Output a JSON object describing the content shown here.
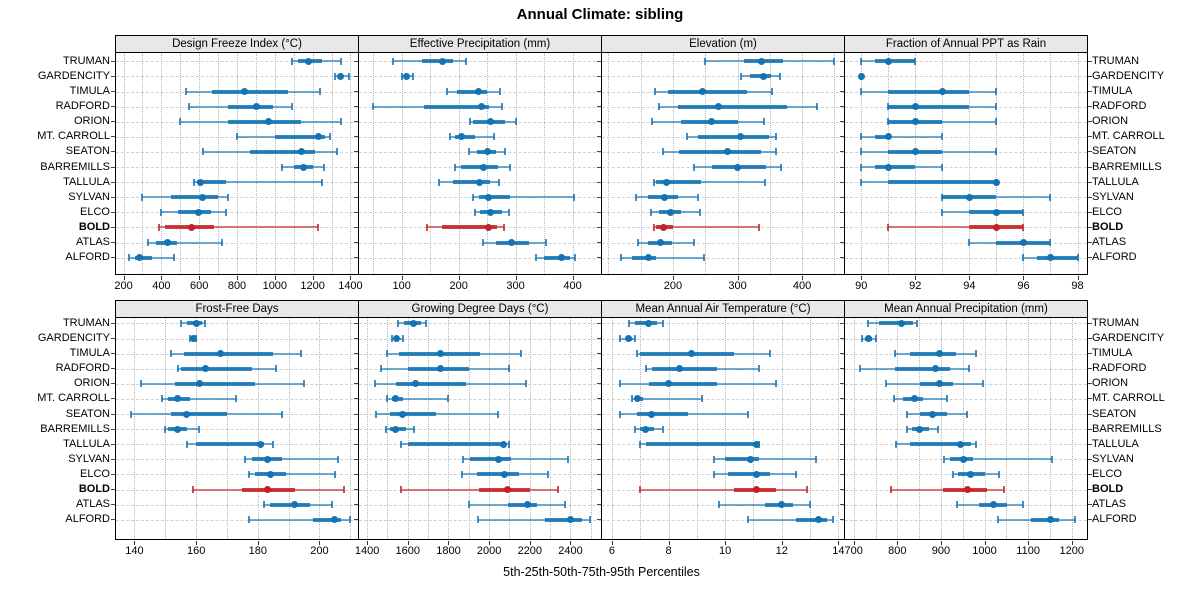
{
  "title": "Annual Climate: sibling",
  "footer": "5th-25th-50th-75th-95th Percentiles",
  "chart_data": {
    "type": "dot-interval",
    "title": "Annual Climate: sibling",
    "xlabel": "5th-25th-50th-75th-95th Percentiles",
    "percentiles": [
      5,
      25,
      50,
      75,
      95
    ],
    "legend_position": "none",
    "grid": "dotted",
    "stations": [
      "TRUMAN",
      "GARDENCITY",
      "TIMULA",
      "RADFORD",
      "ORION",
      "MT. CARROLL",
      "SEATON",
      "BARREMILLS",
      "TALLULA",
      "SYLVAN",
      "ELCO",
      "BOLD",
      "ATLAS",
      "ALFORD"
    ],
    "highlight_station": "BOLD",
    "colors": {
      "series": "#1473B4",
      "highlight": "#C22227",
      "strip_bg": "#E8E8E8",
      "panel_border": "#000000",
      "grid_line": "#B5B5B5",
      "row_guide": "#D2D2D2"
    },
    "panels": [
      {
        "key": "design-freeze-index",
        "title": "Design Freeze Index (°C)",
        "xmin": 160,
        "xmax": 1440,
        "ticks": [
          200,
          400,
          600,
          800,
          1000,
          1200,
          1400
        ],
        "grid_step": 100,
        "values": {
          "TRUMAN": [
            1090,
            1120,
            1180,
            1250,
            1350
          ],
          "GARDENCITY": [
            1320,
            1340,
            1350,
            1360,
            1390
          ],
          "TIMULA": [
            530,
            670,
            840,
            1070,
            1240
          ],
          "RADFORD": [
            545,
            750,
            905,
            990,
            1090
          ],
          "ORION": [
            500,
            750,
            965,
            1140,
            1350
          ],
          "MT. CARROLL": [
            800,
            1000,
            1230,
            1265,
            1290
          ],
          "SEATON": [
            620,
            870,
            1140,
            1210,
            1330
          ],
          "BARREMILLS": [
            1040,
            1100,
            1150,
            1200,
            1260
          ],
          "TALLULA": [
            575,
            590,
            605,
            740,
            1250
          ],
          "SYLVAN": [
            300,
            450,
            620,
            700,
            750
          ],
          "ELCO": [
            400,
            490,
            595,
            660,
            740
          ],
          "BOLD": [
            385,
            420,
            560,
            680,
            1230
          ],
          "ATLAS": [
            330,
            370,
            430,
            480,
            720
          ],
          "ALFORD": [
            230,
            260,
            285,
            350,
            465
          ]
        }
      },
      {
        "key": "effective-precipitation",
        "title": "Effective Precipitation (mm)",
        "xmin": 25,
        "xmax": 450,
        "ticks": [
          100,
          200,
          300,
          400
        ],
        "grid_step": 50,
        "values": {
          "TRUMAN": [
            85,
            135,
            172,
            190,
            213
          ],
          "GARDENCITY": [
            101,
            105,
            108,
            112,
            119
          ],
          "TIMULA": [
            180,
            197,
            234,
            250,
            272
          ],
          "RADFORD": [
            50,
            140,
            240,
            253,
            276
          ],
          "ORION": [
            220,
            226,
            256,
            282,
            300
          ],
          "MT. CARROLL": [
            184,
            194,
            205,
            229,
            262
          ],
          "SEATON": [
            218,
            232,
            250,
            265,
            282
          ],
          "BARREMILLS": [
            194,
            205,
            243,
            270,
            291
          ],
          "TALLULA": [
            166,
            190,
            237,
            255,
            270
          ],
          "SYLVAN": [
            226,
            235,
            252,
            290,
            403
          ],
          "ELCO": [
            229,
            238,
            256,
            276,
            288
          ],
          "BOLD": [
            145,
            170,
            253,
            268,
            280
          ],
          "ATLAS": [
            243,
            265,
            293,
            324,
            353
          ],
          "ALFORD": [
            335,
            350,
            380,
            395,
            405
          ]
        }
      },
      {
        "key": "elevation",
        "title": "Elevation (m)",
        "xmin": 90,
        "xmax": 465,
        "ticks": [
          200,
          300,
          400
        ],
        "grid_step": 50,
        "values": {
          "TRUMAN": [
            250,
            310,
            337,
            370,
            450
          ],
          "GARDENCITY": [
            305,
            320,
            340,
            352,
            366
          ],
          "TIMULA": [
            172,
            193,
            245,
            315,
            353
          ],
          "RADFORD": [
            179,
            208,
            270,
            377,
            423
          ],
          "ORION": [
            168,
            212,
            260,
            300,
            341
          ],
          "MT. CARROLL": [
            222,
            238,
            305,
            349,
            360
          ],
          "SEATON": [
            185,
            210,
            284,
            336,
            359
          ],
          "BARREMILLS": [
            232,
            260,
            300,
            344,
            367
          ],
          "TALLULA": [
            171,
            174,
            190,
            244,
            342
          ],
          "SYLVAN": [
            143,
            162,
            187,
            208,
            238
          ],
          "ELCO": [
            166,
            178,
            196,
            213,
            242
          ],
          "BOLD": [
            171,
            174,
            186,
            200,
            333
          ],
          "ATLAS": [
            146,
            162,
            181,
            199,
            232
          ],
          "ALFORD": [
            119,
            137,
            162,
            174,
            248
          ]
        }
      },
      {
        "key": "fraction-ppt-rain",
        "title": "Fraction of Annual PPT as Rain",
        "xmin": 89.4,
        "xmax": 98.35,
        "ticks": [
          90,
          92,
          94,
          96,
          98
        ],
        "grid_step": 1,
        "values": {
          "TRUMAN": [
            90,
            90.5,
            91,
            92,
            92
          ],
          "GARDENCITY": [
            90,
            90,
            90,
            90,
            90
          ],
          "TIMULA": [
            90,
            91,
            93,
            94,
            95
          ],
          "RADFORD": [
            91,
            91,
            92,
            94,
            95
          ],
          "ORION": [
            91,
            91,
            92,
            93,
            95
          ],
          "MT. CARROLL": [
            90,
            90.5,
            91,
            91,
            93
          ],
          "SEATON": [
            90,
            91,
            92,
            93,
            95
          ],
          "BARREMILLS": [
            90,
            90.5,
            91,
            92,
            93
          ],
          "TALLULA": [
            90,
            91,
            95,
            95,
            95
          ],
          "SYLVAN": [
            93,
            93,
            94,
            95,
            97
          ],
          "ELCO": [
            93,
            94,
            95,
            96,
            96
          ],
          "BOLD": [
            91,
            94,
            95,
            96,
            96
          ],
          "ATLAS": [
            94,
            95,
            96,
            97,
            97
          ],
          "ALFORD": [
            96,
            96.5,
            97,
            98,
            98
          ]
        }
      },
      {
        "key": "frost-free-days",
        "title": "Frost-Free Days",
        "xmin": 134,
        "xmax": 212.5,
        "ticks": [
          140,
          160,
          180,
          200
        ],
        "grid_step": 10,
        "values": {
          "TRUMAN": [
            155,
            157,
            160,
            162,
            163
          ],
          "GARDENCITY": [
            158,
            158.5,
            159,
            159.5,
            160
          ],
          "TIMULA": [
            152,
            156,
            168,
            185,
            194
          ],
          "RADFORD": [
            154,
            155,
            163,
            178,
            186
          ],
          "ORION": [
            142,
            153,
            161,
            179,
            195
          ],
          "MT. CARROLL": [
            149,
            151,
            154,
            158,
            173
          ],
          "SEATON": [
            139,
            152,
            157,
            170,
            188
          ],
          "BARREMILLS": [
            150,
            151,
            154,
            157,
            161
          ],
          "TALLULA": [
            157,
            160,
            181,
            182,
            185
          ],
          "SYLVAN": [
            176,
            178,
            183,
            188,
            206
          ],
          "ELCO": [
            177,
            179,
            184,
            189,
            205
          ],
          "BOLD": [
            159,
            175,
            183,
            192,
            208
          ],
          "ATLAS": [
            182,
            184,
            192,
            197,
            204
          ],
          "ALFORD": [
            177,
            198,
            205,
            207,
            210
          ]
        }
      },
      {
        "key": "growing-degree-days",
        "title": "Growing Degree Days (°C)",
        "xmin": 1360,
        "xmax": 2550,
        "ticks": [
          1400,
          1600,
          1800,
          2000,
          2200,
          2400
        ],
        "grid_step": 100,
        "values": {
          "TRUMAN": [
            1550,
            1580,
            1630,
            1665,
            1690
          ],
          "GARDENCITY": [
            1520,
            1535,
            1545,
            1555,
            1575
          ],
          "TIMULA": [
            1500,
            1555,
            1760,
            1955,
            2155
          ],
          "RADFORD": [
            1470,
            1600,
            1760,
            1900,
            2100
          ],
          "ORION": [
            1440,
            1540,
            1640,
            1885,
            2180
          ],
          "MT. CARROLL": [
            1500,
            1520,
            1540,
            1575,
            1800
          ],
          "SEATON": [
            1445,
            1510,
            1575,
            1740,
            2045
          ],
          "BARREMILLS": [
            1495,
            1510,
            1540,
            1590,
            1630
          ],
          "TALLULA": [
            1565,
            1600,
            2070,
            2085,
            2100
          ],
          "SYLVAN": [
            1870,
            1905,
            2045,
            2105,
            2390
          ],
          "ELCO": [
            1865,
            1940,
            2075,
            2145,
            2290
          ],
          "BOLD": [
            1565,
            1950,
            2090,
            2200,
            2340
          ],
          "ATLAS": [
            1900,
            2095,
            2190,
            2235,
            2375
          ],
          "ALFORD": [
            1945,
            2275,
            2400,
            2455,
            2495
          ]
        }
      },
      {
        "key": "mean-annual-air-temperature",
        "title": "Mean Annual Air Temperature (°C)",
        "xmin": 5.65,
        "xmax": 14.2,
        "ticks": [
          6,
          8,
          10,
          12,
          14
        ],
        "grid_step": 1,
        "values": {
          "TRUMAN": [
            6.6,
            6.8,
            7.3,
            7.6,
            7.8
          ],
          "GARDENCITY": [
            6.3,
            6.5,
            6.6,
            6.7,
            6.8
          ],
          "TIMULA": [
            6.9,
            7.0,
            8.8,
            10.3,
            11.6
          ],
          "RADFORD": [
            7.2,
            7.4,
            8.4,
            9.7,
            11.2
          ],
          "ORION": [
            6.3,
            7.3,
            8.0,
            9.7,
            11.8
          ],
          "MT. CARROLL": [
            6.7,
            6.8,
            6.9,
            7.1,
            9.2
          ],
          "SEATON": [
            6.3,
            6.9,
            7.4,
            8.7,
            10.8
          ],
          "BARREMILLS": [
            6.8,
            7.0,
            7.2,
            7.5,
            7.8
          ],
          "TALLULA": [
            7.0,
            7.2,
            11.1,
            11.2,
            11.2
          ],
          "SYLVAN": [
            9.6,
            10.0,
            10.9,
            11.2,
            13.2
          ],
          "ELCO": [
            9.6,
            10.1,
            11.1,
            11.6,
            12.5
          ],
          "BOLD": [
            7.0,
            10.3,
            11.1,
            11.8,
            12.9
          ],
          "ATLAS": [
            9.8,
            11.4,
            12.0,
            12.4,
            13.0
          ],
          "ALFORD": [
            10.8,
            12.5,
            13.3,
            13.6,
            13.8
          ]
        }
      },
      {
        "key": "mean-annual-precipitation",
        "title": "Mean Annual Precipitation (mm)",
        "xmin": 680,
        "xmax": 1235,
        "ticks": [
          700,
          800,
          900,
          1000,
          1100,
          1200
        ],
        "grid_step": 50,
        "values": {
          "TRUMAN": [
            733,
            758,
            810,
            835,
            845
          ],
          "GARDENCITY": [
            720,
            727,
            735,
            743,
            750
          ],
          "TIMULA": [
            795,
            830,
            897,
            935,
            980
          ],
          "RADFORD": [
            715,
            795,
            887,
            920,
            965
          ],
          "ORION": [
            775,
            853,
            897,
            927,
            997
          ],
          "MT. CARROLL": [
            793,
            814,
            840,
            860,
            915
          ],
          "SEATON": [
            822,
            853,
            880,
            913,
            960
          ],
          "BARREMILLS": [
            822,
            834,
            850,
            872,
            893
          ],
          "TALLULA": [
            798,
            830,
            945,
            968,
            980
          ],
          "SYLVAN": [
            908,
            920,
            952,
            973,
            1155
          ],
          "ELCO": [
            928,
            940,
            968,
            1000,
            1033
          ],
          "BOLD": [
            785,
            905,
            960,
            1005,
            1045
          ],
          "ATLAS": [
            936,
            988,
            1021,
            1051,
            1089
          ],
          "ALFORD": [
            1030,
            1107,
            1151,
            1171,
            1207
          ]
        }
      }
    ]
  }
}
